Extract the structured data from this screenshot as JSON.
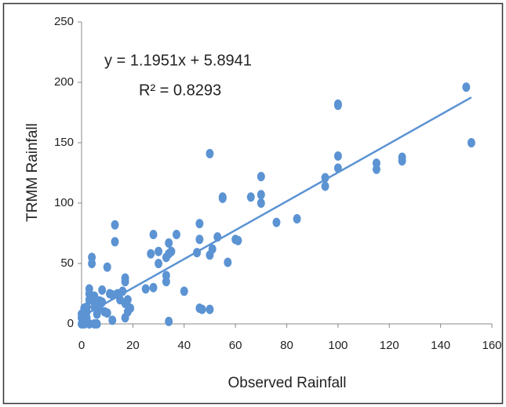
{
  "chart_data": {
    "type": "scatter",
    "xlabel": "Observed Rainfall",
    "ylabel": "TRMM Rainfall",
    "annotations": [
      "y = 1.1951x + 5.8941",
      "R² = 0.8293"
    ],
    "xlim": [
      0,
      160
    ],
    "xticks": [
      0,
      20,
      40,
      60,
      80,
      100,
      120,
      140,
      160
    ],
    "ylim": [
      0,
      250
    ],
    "yticks": [
      0,
      50,
      100,
      150,
      200,
      250
    ],
    "grid": false,
    "color": "#5b93d3",
    "trendline": {
      "slope": 1.1951,
      "intercept": 5.8941,
      "xrange": [
        0,
        152
      ],
      "color": "#5b93d3"
    },
    "x": [
      0,
      0,
      0,
      1,
      1,
      1,
      2,
      2,
      2,
      3,
      3,
      3,
      3,
      4,
      4,
      5,
      5,
      5,
      5,
      6,
      6,
      7,
      7,
      8,
      8,
      9,
      10,
      10,
      11,
      12,
      12,
      13,
      13,
      14,
      15,
      16,
      17,
      17,
      17,
      17,
      18,
      18,
      19,
      25,
      27,
      28,
      28,
      30,
      30,
      33,
      33,
      33,
      34,
      34,
      34,
      35,
      37,
      40,
      45,
      46,
      46,
      46,
      47,
      50,
      50,
      50,
      51,
      53,
      55,
      55,
      57,
      60,
      61,
      66,
      70,
      70,
      70,
      76,
      84,
      95,
      95,
      100,
      100,
      100,
      100,
      115,
      115,
      125,
      125,
      150,
      152
    ],
    "y": [
      0,
      5,
      8,
      2,
      13,
      0,
      5,
      10,
      14,
      0,
      20,
      29,
      25,
      50,
      55,
      14,
      17,
      23,
      0,
      8,
      0,
      19,
      13,
      18,
      28,
      10,
      47,
      9,
      25,
      24,
      3,
      68,
      82,
      25,
      20,
      27,
      38,
      35,
      17,
      5,
      20,
      10,
      13,
      29,
      58,
      30,
      74,
      50,
      60,
      55,
      40,
      35,
      67,
      58,
      2,
      60,
      74,
      27,
      59,
      70,
      83,
      13,
      12,
      141,
      57,
      12,
      62,
      72,
      105,
      104,
      51,
      70,
      69,
      105,
      122,
      107,
      100,
      84,
      87,
      121,
      114,
      181,
      182,
      139,
      129,
      133,
      128,
      138,
      135,
      196,
      150
    ]
  }
}
